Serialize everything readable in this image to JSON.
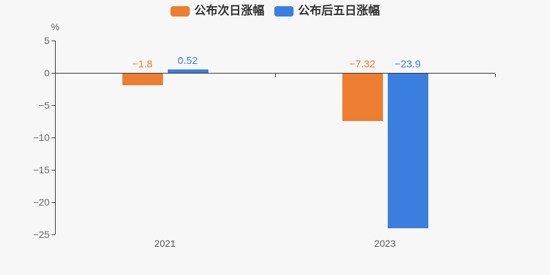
{
  "chart_data": {
    "type": "bar",
    "categories": [
      "2021",
      "2023"
    ],
    "series": [
      {
        "name": "公布次日涨幅",
        "color": "#ed7d31",
        "values": [
          -1.8,
          -7.32
        ],
        "value_labels": [
          "−1.8",
          "−7.32"
        ]
      },
      {
        "name": "公布后五日涨幅",
        "color": "#3a7ee0",
        "values": [
          0.52,
          -23.9
        ],
        "value_labels": [
          "0.52",
          "−23.9"
        ]
      }
    ],
    "title": "",
    "xlabel": "",
    "ylabel": "%",
    "ylim": [
      -25,
      5
    ],
    "yticks": [
      5,
      0,
      -5,
      -10,
      -15,
      -20,
      -25
    ],
    "ytick_labels": [
      "5",
      "0",
      "−5",
      "−10",
      "−15",
      "−20",
      "−25"
    ],
    "legend_position": "top",
    "grid": false
  },
  "colors": {
    "background": "#f7f7f7",
    "axis_line": "#333333",
    "ytick_label": "#666666",
    "category_label": "#555555",
    "legend_text": "#333333"
  }
}
